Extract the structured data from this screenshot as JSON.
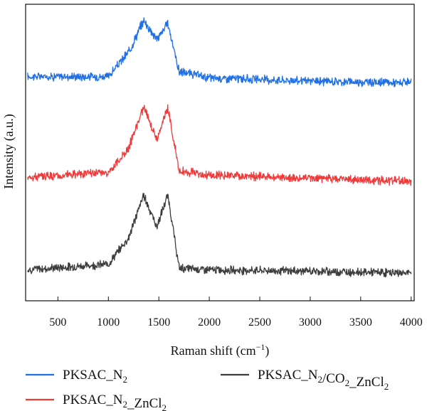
{
  "chart_data": {
    "type": "line",
    "xlabel": "Raman shift (cm⁻¹)",
    "ylabel": "Intensity (a.u.)",
    "xlim": [
      180,
      4030
    ],
    "xticks": [
      500,
      1000,
      1500,
      2000,
      2500,
      3000,
      3500,
      4000
    ],
    "y_ticks_shown": false,
    "grid": false,
    "legend_position": "bottom",
    "series": [
      {
        "name": "PKSAC_N2",
        "legend_main": "PKSAC_N",
        "legend_sub": "2",
        "legend_tail": "",
        "legend_sub2": "",
        "color": "#1f6fe5",
        "offset": 2.9,
        "points": [
          [
            200,
            0.17
          ],
          [
            1000,
            0.17
          ],
          [
            1200,
            0.55
          ],
          [
            1350,
            1.05
          ],
          [
            1480,
            0.75
          ],
          [
            1590,
            1.0
          ],
          [
            1700,
            0.25
          ],
          [
            2000,
            0.15
          ],
          [
            3000,
            0.1
          ],
          [
            4000,
            0.07
          ]
        ]
      },
      {
        "name": "PKSAC_N2_ZnCl2",
        "legend_main": "PKSAC_N",
        "legend_sub": "2",
        "legend_tail": "_ZnCl",
        "legend_sub2": "2",
        "color": "#ee3a3a",
        "offset": 1.45,
        "points": [
          [
            200,
            0.05
          ],
          [
            1000,
            0.12
          ],
          [
            1200,
            0.5
          ],
          [
            1350,
            1.15
          ],
          [
            1480,
            0.65
          ],
          [
            1590,
            1.12
          ],
          [
            1700,
            0.15
          ],
          [
            2000,
            0.08
          ],
          [
            3000,
            0.03
          ],
          [
            4000,
            -0.02
          ]
        ]
      },
      {
        "name": "PKSAC_N2/CO2_ZnCl2",
        "legend_main": "PKSAC_N",
        "legend_sub": "2",
        "legend_tail": "/CO",
        "legend_sub2": "2",
        "legend_tail2": "_ZnCl",
        "legend_sub3": "2",
        "color": "#3d3d3d",
        "offset": 0.0,
        "points": [
          [
            200,
            0.05
          ],
          [
            1000,
            0.14
          ],
          [
            1200,
            0.55
          ],
          [
            1350,
            1.22
          ],
          [
            1480,
            0.72
          ],
          [
            1590,
            1.22
          ],
          [
            1700,
            0.08
          ],
          [
            2000,
            0.05
          ],
          [
            3000,
            0.03
          ],
          [
            4000,
            0.0
          ]
        ]
      }
    ]
  }
}
